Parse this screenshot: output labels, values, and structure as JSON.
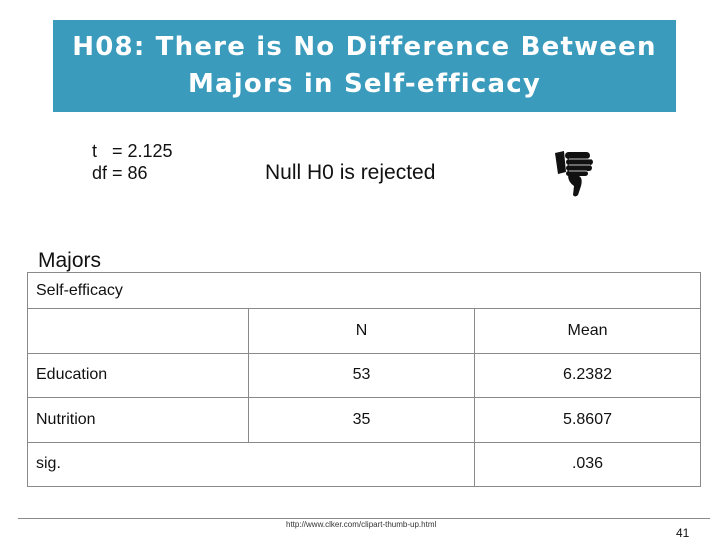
{
  "slide": {
    "title_line1": "H08: There is No Difference Between",
    "title_line2": "Majors in Self-efficacy",
    "t_stat": "t   = 2.125",
    "df_stat": "df = 86",
    "conclusion": "Null H0 is rejected",
    "icon": "thumbs-down-icon",
    "section_label": "Majors",
    "footer_url": "http://www.clker.com/clipart-thumb-up.html",
    "page_number": "41"
  },
  "table": {
    "caption": "Self-efficacy",
    "headers": [
      "",
      "N",
      "Mean"
    ],
    "rows": [
      [
        "Education",
        "53",
        "6.2382"
      ],
      [
        "Nutrition",
        "35",
        "5.8607"
      ]
    ],
    "sig_label": "sig.",
    "sig_value": ".036"
  },
  "colors": {
    "title_background": "#3a9bbd",
    "title_text": "#ffffff",
    "grid_line": "#8a8a8a"
  }
}
